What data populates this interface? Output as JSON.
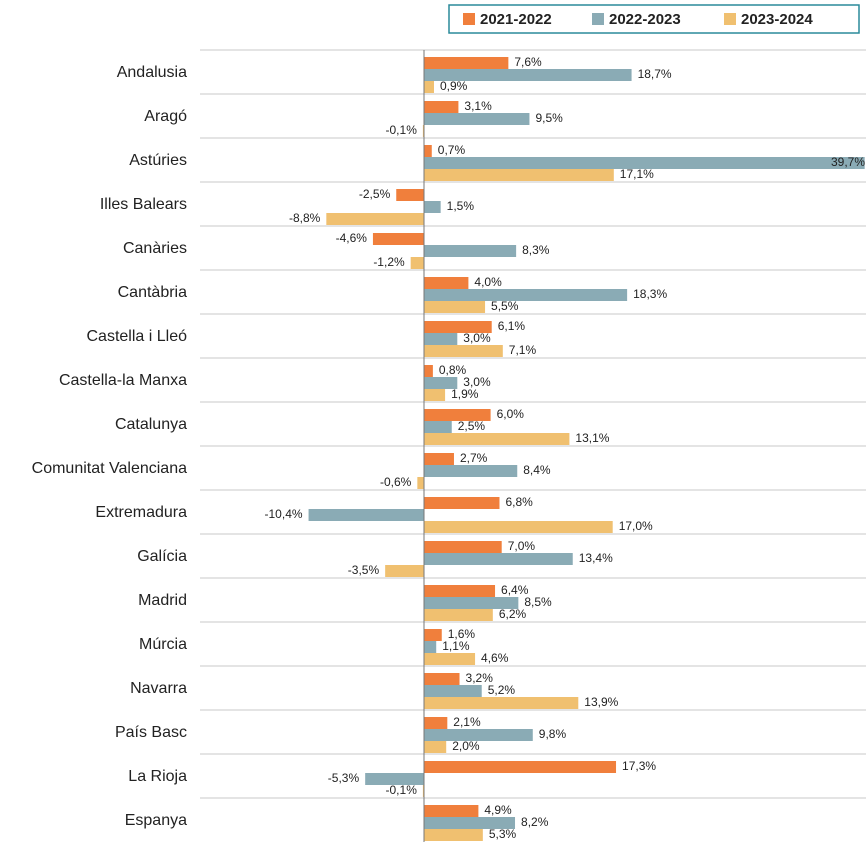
{
  "chart_data": {
    "type": "bar",
    "orientation": "horizontal",
    "categories": [
      "Andalusia",
      "Aragó",
      "Astúries",
      "Illes Balears",
      "Canàries",
      "Cantàbria",
      "Castella i Lleó",
      "Castella-la Manxa",
      "Catalunya",
      "Comunitat Valenciana",
      "Extremadura",
      "Galícia",
      "Madrid",
      "Múrcia",
      "Navarra",
      "País Basc",
      "La Rioja",
      "Espanya"
    ],
    "series": [
      {
        "name": "2021-2022",
        "color": "#f07f3c",
        "values": [
          7.6,
          3.1,
          0.7,
          -2.5,
          -4.6,
          4.0,
          6.1,
          0.8,
          6.0,
          2.7,
          6.8,
          7.0,
          6.4,
          1.6,
          3.2,
          2.1,
          17.3,
          4.9
        ],
        "value_labels": [
          "7,6%",
          "3,1%",
          "0,7%",
          "-2,5%",
          "-4,6%",
          "4,0%",
          "6,1%",
          "0,8%",
          "6,0%",
          "2,7%",
          "6,8%",
          "7,0%",
          "6,4%",
          "1,6%",
          "3,2%",
          "2,1%",
          "17,3%",
          "4,9%"
        ]
      },
      {
        "name": "2022-2023",
        "color": "#8aabb5",
        "values": [
          18.7,
          9.5,
          39.7,
          1.5,
          8.3,
          18.3,
          3.0,
          3.0,
          2.5,
          8.4,
          -10.4,
          13.4,
          8.5,
          1.1,
          5.2,
          9.8,
          -5.3,
          8.2
        ],
        "value_labels": [
          "18,7%",
          "9,5%",
          "39,7%",
          "1,5%",
          "8,3%",
          "18,3%",
          "3,0%",
          "3,0%",
          "2,5%",
          "8,4%",
          "-10,4%",
          "13,4%",
          "8,5%",
          "1,1%",
          "5,2%",
          "9,8%",
          "-5,3%",
          "8,2%"
        ]
      },
      {
        "name": "2023-2024",
        "color": "#f0c070",
        "values": [
          0.9,
          -0.1,
          17.1,
          -8.8,
          -1.2,
          5.5,
          7.1,
          1.9,
          13.1,
          -0.6,
          17.0,
          -3.5,
          6.2,
          4.6,
          13.9,
          2.0,
          -0.1,
          5.3
        ],
        "value_labels": [
          "0,9%",
          "-0,1%",
          "17,1%",
          "-8,8%",
          "-1,2%",
          "5,5%",
          "7,1%",
          "1,9%",
          "13,1%",
          "-0,6%",
          "17,0%",
          "-3,5%",
          "6,2%",
          "4,6%",
          "13,9%",
          "2,0%",
          "-0,1%",
          "5,3%"
        ]
      }
    ],
    "legend": "top-right"
  }
}
